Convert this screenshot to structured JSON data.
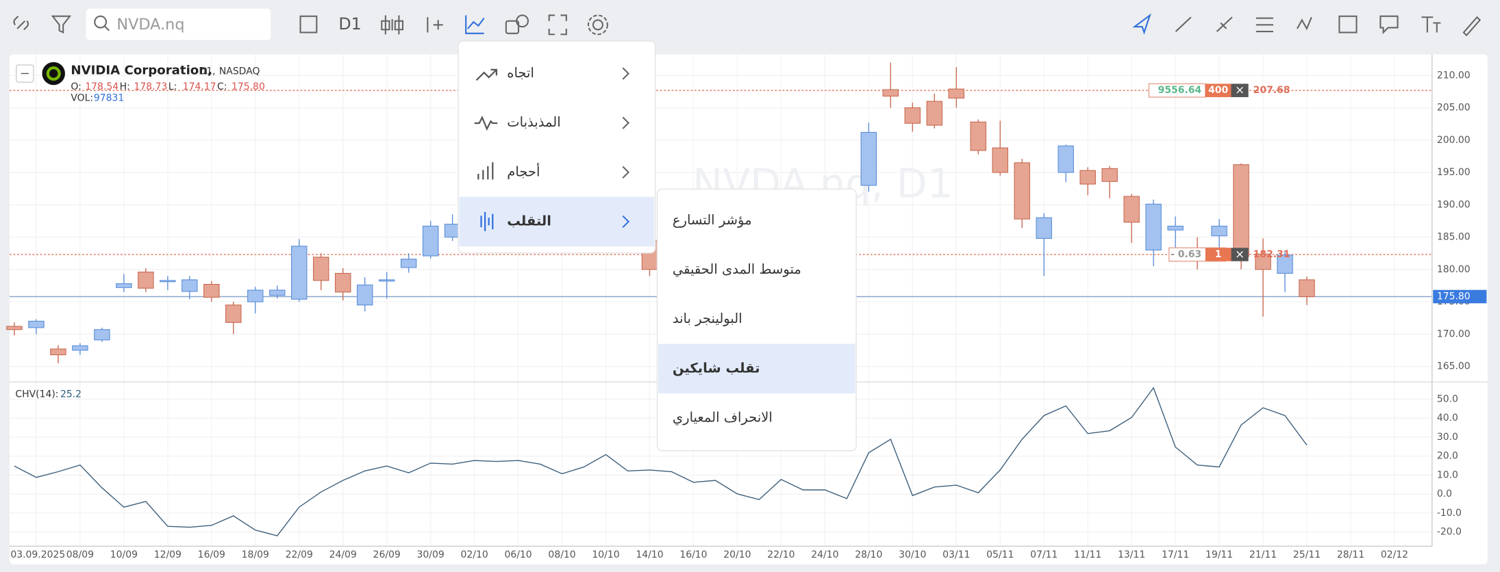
{
  "toolbar": {
    "search_placeholder": "NVDA.nq",
    "timeframe": "D1"
  },
  "chart_header": {
    "name": "NVIDIA Corporation,",
    "timeframe": "D1,",
    "exchange": "NASDAQ",
    "ohlc": [
      {
        "label": "O:",
        "value": "178.54"
      },
      {
        "label": "H:",
        "value": "178.73"
      },
      {
        "label": "L:",
        "value": "174.17"
      },
      {
        "label": "C:",
        "value": "175.80"
      }
    ],
    "volume_label": "VOL:",
    "volume": "97831"
  },
  "watermark": "NVDA.nq, D1",
  "price_axis": {
    "ylim": [
      162.6,
      213.25
    ],
    "yticks": [
      {
        "value": 210,
        "label": "210.00"
      },
      {
        "value": 205,
        "label": "205.00"
      },
      {
        "value": 200,
        "label": "200.00"
      },
      {
        "value": 195,
        "label": "195.00"
      },
      {
        "value": 190,
        "label": "190.00"
      },
      {
        "value": 185,
        "label": "185.00"
      },
      {
        "value": 180,
        "label": "180.00"
      },
      {
        "value": 175,
        "label": "175.00"
      },
      {
        "value": 170,
        "label": "170.00"
      },
      {
        "value": 165,
        "label": "165.00"
      }
    ]
  },
  "candles": [
    {
      "slot": 0,
      "open": 171.2,
      "high": 171.8,
      "low": 169.8,
      "close": 170.7
    },
    {
      "slot": 1,
      "open": 171,
      "high": 172.3,
      "low": 170,
      "close": 172
    },
    {
      "slot": 2,
      "open": 167.7,
      "high": 168.3,
      "low": 165.5,
      "close": 166.8
    },
    {
      "slot": 3,
      "open": 167.5,
      "high": 168.6,
      "low": 166.8,
      "close": 168.2
    },
    {
      "slot": 4,
      "open": 169.1,
      "high": 171,
      "low": 168.8,
      "close": 170.7
    },
    {
      "slot": 5,
      "open": 177.2,
      "high": 179.3,
      "low": 176.5,
      "close": 177.8
    },
    {
      "slot": 6,
      "open": 179.6,
      "high": 180.2,
      "low": 176.5,
      "close": 177.1
    },
    {
      "slot": 7,
      "open": 178.1,
      "high": 179,
      "low": 176.8,
      "close": 178.3
    },
    {
      "slot": 8,
      "open": 176.6,
      "high": 179,
      "low": 175.4,
      "close": 178.4
    },
    {
      "slot": 9,
      "open": 177.7,
      "high": 178.2,
      "low": 175,
      "close": 175.7
    },
    {
      "slot": 10,
      "open": 174.5,
      "high": 175,
      "low": 170,
      "close": 171.8
    },
    {
      "slot": 11,
      "open": 175,
      "high": 177.3,
      "low": 173.2,
      "close": 176.8
    },
    {
      "slot": 12,
      "open": 176,
      "high": 177.5,
      "low": 175.5,
      "close": 176.8
    },
    {
      "slot": 13,
      "open": 175.4,
      "high": 184.7,
      "low": 175,
      "close": 183.6
    },
    {
      "slot": 14,
      "open": 181.9,
      "high": 182.5,
      "low": 176.8,
      "close": 178.3
    },
    {
      "slot": 15,
      "open": 179.4,
      "high": 180.2,
      "low": 175.2,
      "close": 176.5
    },
    {
      "slot": 16,
      "open": 174.5,
      "high": 178.8,
      "low": 173.5,
      "close": 177.6
    },
    {
      "slot": 17,
      "open": 178.2,
      "high": 179.6,
      "low": 175.5,
      "close": 178.4
    },
    {
      "slot": 18,
      "open": 180.3,
      "high": 182.5,
      "low": 179.5,
      "close": 181.6
    },
    {
      "slot": 19,
      "open": 182.1,
      "high": 187.5,
      "low": 181.7,
      "close": 186.7
    },
    {
      "slot": 20,
      "open": 185,
      "high": 188.5,
      "low": 184.4,
      "close": 187
    },
    {
      "slot": 29,
      "open": 184.5,
      "high": 186,
      "low": 179,
      "close": 180
    },
    {
      "slot": 39,
      "open": 193,
      "high": 202.7,
      "low": 192,
      "close": 201.2
    },
    {
      "slot": 40,
      "open": 207.8,
      "high": 212,
      "low": 205,
      "close": 206.8
    },
    {
      "slot": 41,
      "open": 205,
      "high": 205.8,
      "low": 201.3,
      "close": 202.6
    },
    {
      "slot": 42,
      "open": 206,
      "high": 207.2,
      "low": 201.8,
      "close": 202.3
    },
    {
      "slot": 43,
      "open": 207.9,
      "high": 211.3,
      "low": 205,
      "close": 206.5
    },
    {
      "slot": 44,
      "open": 202.8,
      "high": 203.2,
      "low": 197.8,
      "close": 198.4
    },
    {
      "slot": 45,
      "open": 198.8,
      "high": 203,
      "low": 194.5,
      "close": 195
    },
    {
      "slot": 46,
      "open": 196.5,
      "high": 197.1,
      "low": 186.4,
      "close": 187.8
    },
    {
      "slot": 47,
      "open": 184.8,
      "high": 188.7,
      "low": 179,
      "close": 188
    },
    {
      "slot": 48,
      "open": 195,
      "high": 199.3,
      "low": 193.5,
      "close": 199.1
    },
    {
      "slot": 49,
      "open": 195.3,
      "high": 195.8,
      "low": 191.5,
      "close": 193.2
    },
    {
      "slot": 50,
      "open": 195.6,
      "high": 196,
      "low": 191,
      "close": 193.6
    },
    {
      "slot": 51,
      "open": 191.3,
      "high": 191.7,
      "low": 184.1,
      "close": 187.3
    },
    {
      "slot": 52,
      "open": 183,
      "high": 190.8,
      "low": 180.5,
      "close": 190.1
    },
    {
      "slot": 53,
      "open": 186.1,
      "high": 188.2,
      "low": 183.4,
      "close": 186.7
    },
    {
      "slot": 54,
      "open": 182.1,
      "high": 185,
      "low": 180,
      "close": 181.8
    },
    {
      "slot": 55,
      "open": 185.2,
      "high": 187.8,
      "low": 183,
      "close": 186.7
    },
    {
      "slot": 56,
      "open": 196.2,
      "high": 196.4,
      "low": 180,
      "close": 182
    },
    {
      "slot": 57,
      "open": 182.4,
      "high": 184.8,
      "low": 172.7,
      "close": 180
    },
    {
      "slot": 58,
      "open": 179.4,
      "high": 182.8,
      "low": 176.5,
      "close": 182.2
    },
    {
      "slot": 59,
      "open": 178.4,
      "high": 178.9,
      "low": 174.5,
      "close": 175.8
    }
  ],
  "current_price": {
    "value": 175.8,
    "label": "175.80"
  },
  "orders": [
    {
      "pnl": "9556.64",
      "qty": "400",
      "close": "×",
      "price": 207.68
    },
    {
      "pnl": "- 0.63",
      "qty": "1",
      "close": "×",
      "price": 182.31
    }
  ],
  "indicator": {
    "name": "CHV(14):",
    "value": "25.2",
    "ylim": [
      -27.5,
      58.1
    ],
    "yticks": [
      {
        "value": 50,
        "label": "50.0"
      },
      {
        "value": 40,
        "label": "40.0"
      },
      {
        "value": 30,
        "label": "30.0"
      },
      {
        "value": 20,
        "label": "20.0"
      },
      {
        "value": 10,
        "label": "10.0"
      },
      {
        "value": 0,
        "label": "0.0"
      },
      {
        "value": -10,
        "label": "-10.0"
      },
      {
        "value": -20,
        "label": "-20.0"
      }
    ],
    "values": [
      14.8,
      8.8,
      11.8,
      15.3,
      3.3,
      -6.9,
      -3.9,
      -17,
      -17.5,
      -16.5,
      -11.5,
      -19,
      -22,
      -6.9,
      1.1,
      7.2,
      12.2,
      14.8,
      11.2,
      16.3,
      15.8,
      17.7,
      17.2,
      17.7,
      15.8,
      10.7,
      14.3,
      20.8,
      12.2,
      12.7,
      11.8,
      6.2,
      7.2,
      0.1,
      -2.9,
      7.7,
      2.2,
      2.2,
      -2.4,
      21.8,
      28.9,
      -0.8,
      3.7,
      4.7,
      0.7,
      12.7,
      28.9,
      41.4,
      46.5,
      31.9,
      33.4,
      40.4,
      56,
      24.8,
      15.3,
      14.3,
      36.4,
      45.5,
      41.4,
      25.8
    ]
  },
  "x_axis": {
    "labels": [
      "03.09.2025",
      "08/09",
      "10/09",
      "12/09",
      "16/09",
      "18/09",
      "22/09",
      "24/09",
      "26/09",
      "30/09",
      "02/10",
      "06/10",
      "08/10",
      "10/10",
      "14/10",
      "16/10",
      "20/10",
      "22/10",
      "24/10",
      "28/10",
      "30/10",
      "03/11",
      "05/11",
      "07/11",
      "11/11",
      "13/11",
      "17/11",
      "19/11",
      "21/11",
      "25/11",
      "28/11",
      "02/12"
    ]
  },
  "menu": {
    "items": [
      "اتجاه",
      "المذبذبات",
      "أحجام",
      "التقلب"
    ],
    "active": 3
  },
  "submenu": {
    "items": [
      "مؤشر التسارع",
      "متوسط المدى الحقيقي",
      "البولينجر باند",
      "تقلب شايكين",
      "الانحراف المعياري"
    ],
    "active": 3
  }
}
